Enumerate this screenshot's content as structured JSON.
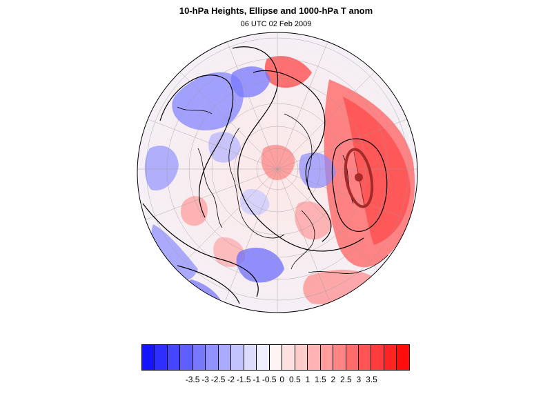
{
  "title": "10-hPa Heights, Ellipse and 1000-hPa T anom",
  "subtitle": "06 UTC 02 Feb 2009",
  "colorbar": {
    "colors": [
      "#1414ff",
      "#2d2dff",
      "#4646ff",
      "#5f5fff",
      "#7878ff",
      "#9191ff",
      "#aaaaff",
      "#c3c3ff",
      "#dcdcff",
      "#eeeeff",
      "#fff4f4",
      "#ffe0e0",
      "#ffcccc",
      "#ffb4b4",
      "#ff9c9c",
      "#ff8484",
      "#ff6c6c",
      "#ff5454",
      "#ff3c3c",
      "#ff2424",
      "#ff0c0c"
    ],
    "tick_labels": [
      "-3.5",
      "-3",
      "-2.5",
      "-2",
      "-1.5",
      "-1",
      "-0.5",
      "0",
      "0.5",
      "1",
      "1.5",
      "2",
      "2.5",
      "3",
      "3.5"
    ]
  },
  "map": {
    "projection": "orthographic",
    "field": "1000-hPa T anom",
    "contour_field": "10-hPa Heights",
    "ellipse_color": "#a52a2a",
    "contour_color": "#000000"
  }
}
